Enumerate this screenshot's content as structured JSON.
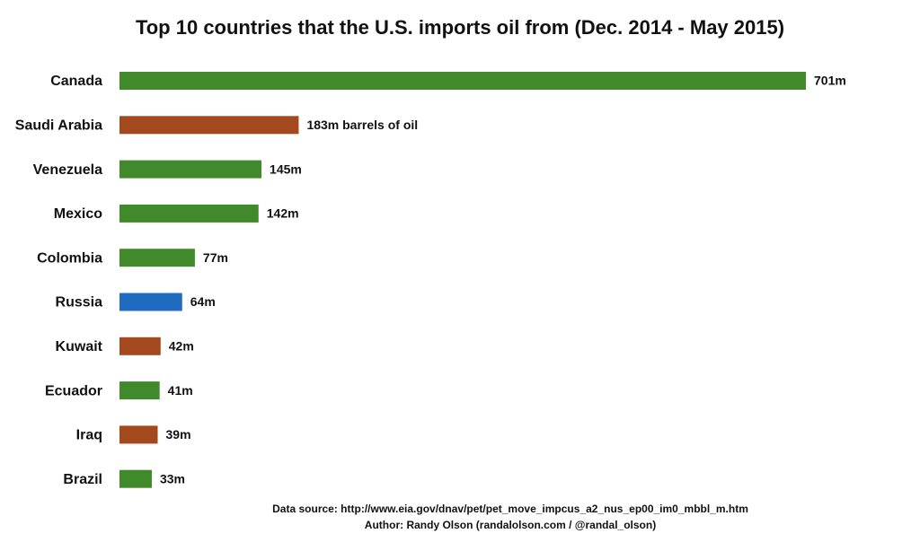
{
  "chart_data": {
    "type": "hbar",
    "title": "Top 10 countries that the U.S. imports oil from (Dec. 2014 - May 2015)",
    "categories": [
      "Canada",
      "Saudi Arabia",
      "Venezuela",
      "Mexico",
      "Colombia",
      "Russia",
      "Kuwait",
      "Ecuador",
      "Iraq",
      "Brazil"
    ],
    "values": [
      701,
      183,
      145,
      142,
      77,
      64,
      42,
      41,
      39,
      33
    ],
    "value_labels": [
      "701m",
      "183m barrels of oil",
      "145m",
      "142m",
      "77m",
      "64m",
      "42m",
      "41m",
      "39m",
      "33m"
    ],
    "colors": [
      "#418a2b",
      "#a3491d",
      "#418a2b",
      "#418a2b",
      "#418a2b",
      "#1f6bbf",
      "#a3491d",
      "#418a2b",
      "#a3491d",
      "#418a2b"
    ],
    "source": "Data source: http://www.eia.gov/dnav/pet/pet_move_impcus_a2_nus_ep00_im0_mbbl_m.htm",
    "author": "Author: Randy Olson (randalolson.com / @randal_olson)"
  }
}
